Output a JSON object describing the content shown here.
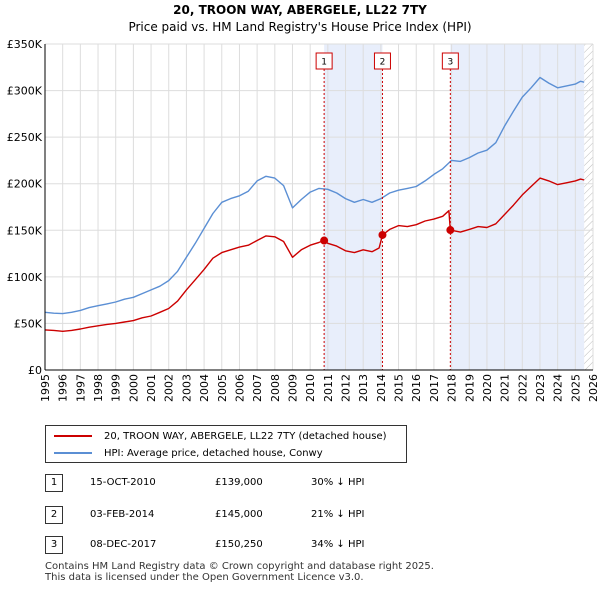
{
  "chart_data": {
    "type": "line",
    "title": "20, TROON WAY, ABERGELE, LL22 7TY",
    "subtitle": "Price paid vs. HM Land Registry's House Price Index (HPI)",
    "xlim": [
      1995,
      2026
    ],
    "ylim": [
      0,
      350000
    ],
    "y_ticks": [
      0,
      50000,
      100000,
      150000,
      200000,
      250000,
      300000,
      350000
    ],
    "y_tick_labels": [
      "£0",
      "£50K",
      "£100K",
      "£150K",
      "£200K",
      "£250K",
      "£300K",
      "£350K"
    ],
    "x_ticks": [
      1995,
      1996,
      1997,
      1998,
      1999,
      2000,
      2001,
      2002,
      2003,
      2004,
      2005,
      2006,
      2007,
      2008,
      2009,
      2010,
      2011,
      2012,
      2013,
      2014,
      2015,
      2016,
      2017,
      2018,
      2019,
      2020,
      2021,
      2022,
      2023,
      2024,
      2025,
      2026
    ],
    "grid": true,
    "shaded_periods": [
      [
        2010.79,
        2014.09
      ],
      [
        2017.93,
        2025.5
      ]
    ],
    "hatched_future_start": 2025.5,
    "series": [
      {
        "name": "20, TROON WAY, ABERGELE, LL22 7TY (detached house)",
        "color": "#cc0000",
        "points": [
          [
            1995.0,
            43000
          ],
          [
            1995.5,
            42500
          ],
          [
            1996.0,
            41500
          ],
          [
            1996.5,
            42500
          ],
          [
            1997.0,
            44000
          ],
          [
            1997.5,
            46000
          ],
          [
            1998.0,
            47500
          ],
          [
            1998.5,
            49000
          ],
          [
            1999.0,
            50000
          ],
          [
            1999.5,
            51500
          ],
          [
            2000.0,
            53000
          ],
          [
            2000.5,
            56000
          ],
          [
            2001.0,
            58000
          ],
          [
            2001.5,
            62000
          ],
          [
            2002.0,
            66000
          ],
          [
            2002.5,
            74000
          ],
          [
            2003.0,
            86000
          ],
          [
            2003.5,
            97000
          ],
          [
            2004.0,
            108000
          ],
          [
            2004.5,
            120000
          ],
          [
            2005.0,
            126000
          ],
          [
            2005.5,
            129000
          ],
          [
            2006.0,
            132000
          ],
          [
            2006.5,
            134000
          ],
          [
            2007.0,
            139000
          ],
          [
            2007.5,
            144000
          ],
          [
            2008.0,
            143000
          ],
          [
            2008.5,
            138000
          ],
          [
            2009.0,
            121000
          ],
          [
            2009.5,
            129000
          ],
          [
            2010.0,
            134000
          ],
          [
            2010.5,
            137000
          ],
          [
            2010.79,
            139000
          ],
          [
            2011.0,
            136000
          ],
          [
            2011.5,
            133000
          ],
          [
            2012.0,
            128000
          ],
          [
            2012.5,
            126000
          ],
          [
            2013.0,
            129000
          ],
          [
            2013.5,
            127000
          ],
          [
            2013.9,
            131000
          ],
          [
            2014.09,
            145000
          ],
          [
            2014.5,
            151000
          ],
          [
            2015.0,
            155000
          ],
          [
            2015.5,
            154000
          ],
          [
            2016.0,
            156000
          ],
          [
            2016.5,
            160000
          ],
          [
            2017.0,
            162000
          ],
          [
            2017.5,
            165000
          ],
          [
            2017.85,
            171000
          ],
          [
            2017.93,
            150250
          ],
          [
            2018.5,
            148000
          ],
          [
            2019.0,
            151000
          ],
          [
            2019.5,
            154000
          ],
          [
            2020.0,
            153000
          ],
          [
            2020.5,
            157000
          ],
          [
            2021.0,
            167000
          ],
          [
            2021.5,
            177000
          ],
          [
            2022.0,
            188000
          ],
          [
            2022.5,
            197000
          ],
          [
            2023.0,
            206000
          ],
          [
            2023.5,
            203000
          ],
          [
            2024.0,
            199000
          ],
          [
            2024.5,
            201000
          ],
          [
            2025.0,
            203000
          ],
          [
            2025.3,
            205000
          ],
          [
            2025.5,
            204000
          ]
        ]
      },
      {
        "name": "HPI: Average price, detached house, Conwy",
        "color": "#5b8fd4",
        "points": [
          [
            1995.0,
            62000
          ],
          [
            1995.5,
            61000
          ],
          [
            1996.0,
            60500
          ],
          [
            1996.5,
            62000
          ],
          [
            1997.0,
            64000
          ],
          [
            1997.5,
            67000
          ],
          [
            1998.0,
            69000
          ],
          [
            1998.5,
            71000
          ],
          [
            1999.0,
            73000
          ],
          [
            1999.5,
            76000
          ],
          [
            2000.0,
            78000
          ],
          [
            2000.5,
            82000
          ],
          [
            2001.0,
            86000
          ],
          [
            2001.5,
            90000
          ],
          [
            2002.0,
            96000
          ],
          [
            2002.5,
            106000
          ],
          [
            2003.0,
            121000
          ],
          [
            2003.5,
            136000
          ],
          [
            2004.0,
            152000
          ],
          [
            2004.5,
            168000
          ],
          [
            2005.0,
            180000
          ],
          [
            2005.5,
            184000
          ],
          [
            2006.0,
            187000
          ],
          [
            2006.5,
            192000
          ],
          [
            2007.0,
            203000
          ],
          [
            2007.5,
            208000
          ],
          [
            2008.0,
            206000
          ],
          [
            2008.5,
            198000
          ],
          [
            2009.0,
            174000
          ],
          [
            2009.5,
            183000
          ],
          [
            2010.0,
            191000
          ],
          [
            2010.5,
            195000
          ],
          [
            2011.0,
            194000
          ],
          [
            2011.5,
            190000
          ],
          [
            2012.0,
            184000
          ],
          [
            2012.5,
            180000
          ],
          [
            2013.0,
            183000
          ],
          [
            2013.5,
            180000
          ],
          [
            2014.0,
            184000
          ],
          [
            2014.5,
            190000
          ],
          [
            2015.0,
            193000
          ],
          [
            2015.5,
            195000
          ],
          [
            2016.0,
            197000
          ],
          [
            2016.5,
            203000
          ],
          [
            2017.0,
            210000
          ],
          [
            2017.5,
            216000
          ],
          [
            2018.0,
            225000
          ],
          [
            2018.5,
            224000
          ],
          [
            2019.0,
            228000
          ],
          [
            2019.5,
            233000
          ],
          [
            2020.0,
            236000
          ],
          [
            2020.5,
            244000
          ],
          [
            2021.0,
            262000
          ],
          [
            2021.5,
            278000
          ],
          [
            2022.0,
            293000
          ],
          [
            2022.5,
            303000
          ],
          [
            2023.0,
            314000
          ],
          [
            2023.5,
            308000
          ],
          [
            2024.0,
            303000
          ],
          [
            2024.5,
            305000
          ],
          [
            2025.0,
            307000
          ],
          [
            2025.3,
            310000
          ],
          [
            2025.5,
            309000
          ]
        ]
      }
    ],
    "markers": [
      {
        "label": "1",
        "x": 2010.79,
        "y": 139000
      },
      {
        "label": "2",
        "x": 2014.09,
        "y": 145000
      },
      {
        "label": "3",
        "x": 2017.93,
        "y": 150250
      }
    ]
  },
  "legend": {
    "items": [
      {
        "label": "20, TROON WAY, ABERGELE, LL22 7TY (detached house)",
        "color": "#cc0000"
      },
      {
        "label": "HPI: Average price, detached house, Conwy",
        "color": "#5b8fd4"
      }
    ]
  },
  "sales": [
    {
      "num": "1",
      "date": "15-OCT-2010",
      "price": "£139,000",
      "hpi": "30% ↓ HPI"
    },
    {
      "num": "2",
      "date": "03-FEB-2014",
      "price": "£145,000",
      "hpi": "21% ↓ HPI"
    },
    {
      "num": "3",
      "date": "08-DEC-2017",
      "price": "£150,250",
      "hpi": "34% ↓ HPI"
    }
  ],
  "footer": {
    "line1": "Contains HM Land Registry data © Crown copyright and database right 2025.",
    "line2": "This data is licensed under the Open Government Licence v3.0."
  }
}
